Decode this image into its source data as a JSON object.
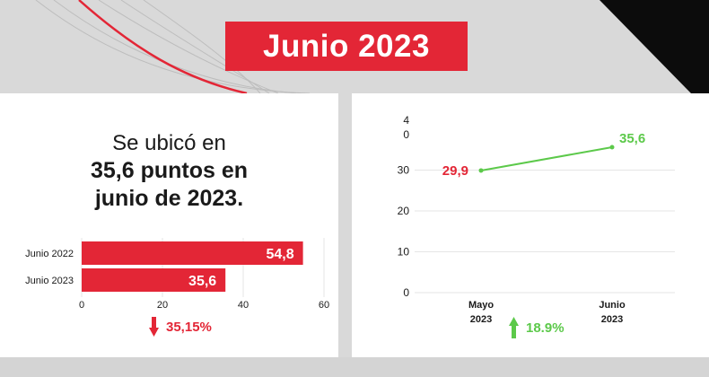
{
  "header": {
    "title": "Junio 2023"
  },
  "left_panel": {
    "headline_line1": "Se ubicó en",
    "headline_line2": "35,6 puntos en",
    "headline_line3": "junio de 2023.",
    "change_label": "35,15%",
    "change_direction": "down"
  },
  "right_panel": {
    "change_label": "18.9%",
    "change_direction": "up"
  },
  "colors": {
    "red": "#e32636",
    "green": "#5cc94a",
    "dark": "#1a1a1a",
    "grid": "#e6e6e6"
  },
  "chart_data": [
    {
      "type": "bar",
      "orientation": "horizontal",
      "categories": [
        "Junio 2022",
        "Junio 2023"
      ],
      "values": [
        54.8,
        35.6
      ],
      "value_labels": [
        "54,8",
        "35,6"
      ],
      "xlim": [
        0,
        60
      ],
      "xticks": [
        0,
        20,
        40,
        60
      ],
      "grid": true
    },
    {
      "type": "line",
      "categories": [
        "Mayo 2023",
        "Junio 2023"
      ],
      "category_lines": [
        [
          "Mayo",
          "2023"
        ],
        [
          "Junio",
          "2023"
        ]
      ],
      "values": [
        29.9,
        35.6
      ],
      "value_labels": [
        "29,9",
        "35,6"
      ],
      "ylim": [
        0,
        40
      ],
      "yticks": [
        0,
        10,
        20,
        30
      ],
      "ytick_labels": [
        "0",
        "10",
        "20",
        "30"
      ],
      "top_tick_label_lines": [
        "4",
        "0"
      ],
      "grid": true
    }
  ]
}
